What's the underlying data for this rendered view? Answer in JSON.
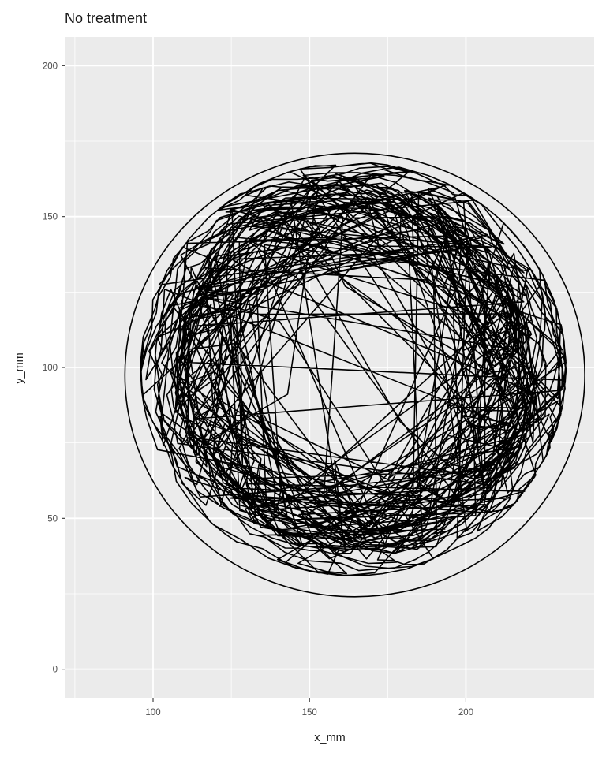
{
  "chart_data": {
    "type": "line",
    "title": "No treatment",
    "xlabel": "x_mm",
    "ylabel": "y_mm",
    "xlim": [
      72,
      241
    ],
    "ylim": [
      -9.5,
      209.5
    ],
    "x_ticks": [
      100,
      150,
      200
    ],
    "y_ticks": [
      0,
      50,
      100,
      150,
      200
    ],
    "x_ticks_minor": [
      75,
      125,
      175,
      225
    ],
    "y_ticks_minor": [
      25,
      75,
      125,
      175
    ],
    "grid": true,
    "panel_background": "#EBEBEB",
    "gridline_color": "#FFFFFF",
    "line_color": "#000000",
    "arena": {
      "center_x": 164.5,
      "center_y": 97.5,
      "radius_x": 73.5,
      "radius_y": 73.5
    },
    "track_extent": {
      "x_min": 96,
      "x_max": 232,
      "y_min": 31,
      "y_max": 168
    }
  }
}
